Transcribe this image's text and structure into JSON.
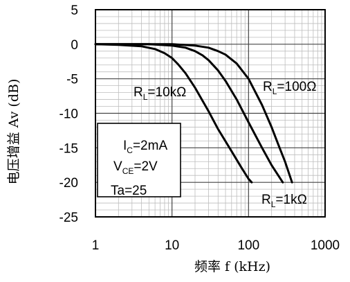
{
  "chart_data": {
    "type": "line",
    "xlabel": "频率 f (kHz)",
    "ylabel": "电压增益 Av (dB)",
    "xscale": "log",
    "xlim": [
      1,
      1000
    ],
    "ylim": [
      -25,
      5
    ],
    "grid": true,
    "x_ticks": [
      "1",
      "10",
      "100",
      "1000"
    ],
    "y_ticks": [
      "5",
      "0",
      "-5",
      "-10",
      "-15",
      "-20",
      "-25"
    ],
    "series": [
      {
        "name": "R_L=10kΩ",
        "label_main": "R",
        "label_sub": "L",
        "label_rest": "=10kΩ",
        "x": [
          1,
          2,
          4,
          6,
          8,
          10,
          12,
          15,
          20,
          30,
          40,
          60,
          80,
          100,
          110
        ],
        "y": [
          0,
          -0.1,
          -0.3,
          -0.7,
          -1.3,
          -2,
          -2.9,
          -4.2,
          -6.3,
          -9.7,
          -12.3,
          -15.5,
          -17.8,
          -19.5,
          -20
        ]
      },
      {
        "name": "R_L=1kΩ",
        "label_main": "R",
        "label_sub": "L",
        "label_rest": "=1kΩ",
        "x": [
          1,
          5,
          10,
          15,
          20,
          25,
          30,
          40,
          50,
          70,
          100,
          150,
          200,
          280
        ],
        "y": [
          0,
          0,
          -0.2,
          -0.5,
          -1,
          -1.6,
          -2.3,
          -3.8,
          -5.3,
          -8,
          -11.3,
          -15,
          -17.5,
          -20
        ]
      },
      {
        "name": "R_L=100Ω",
        "label_main": "R",
        "label_sub": "L",
        "label_rest": "=100Ω",
        "x": [
          1,
          10,
          20,
          30,
          40,
          50,
          70,
          100,
          150,
          200,
          250,
          300,
          370
        ],
        "y": [
          0,
          0,
          -0.2,
          -0.5,
          -1,
          -1.5,
          -2.8,
          -5,
          -8.8,
          -12,
          -14.8,
          -17,
          -20
        ]
      }
    ],
    "conditions": {
      "ic": {
        "main": "I",
        "sub": "C",
        "rest": "=2mA"
      },
      "vce": {
        "main": "V",
        "sub": "CE",
        "rest": "=2V"
      },
      "ta": "Ta=25"
    }
  }
}
